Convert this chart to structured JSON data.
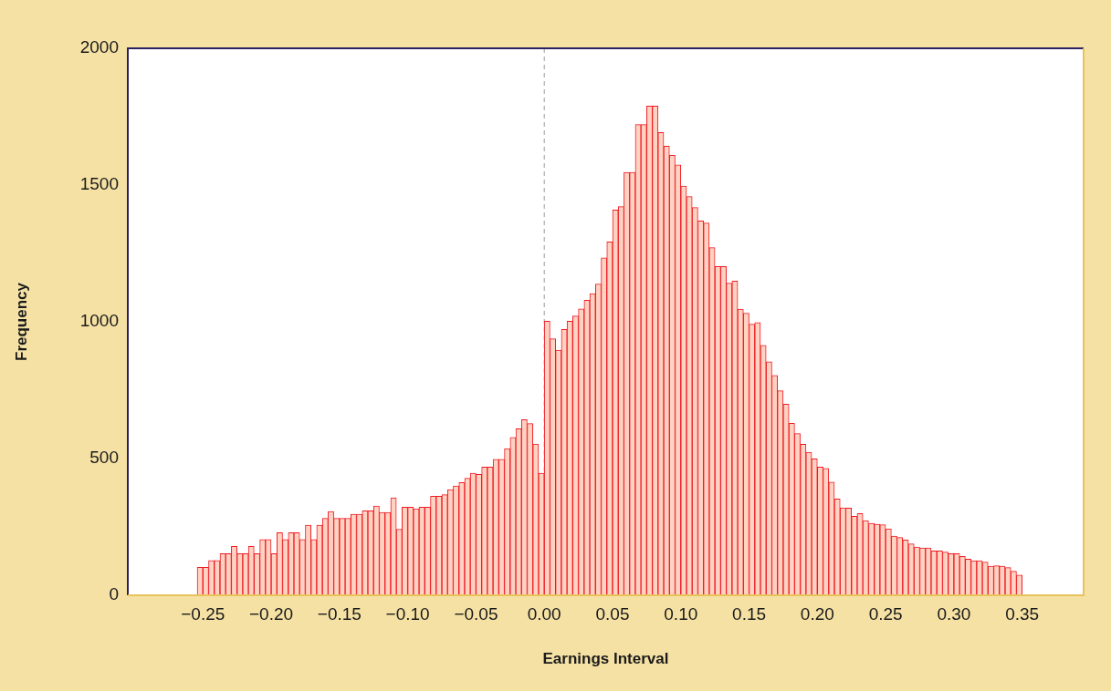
{
  "chart_data": {
    "type": "histogram",
    "xlabel": "Earnings Interval",
    "ylabel": "Frequency",
    "color": "#ffd2c2",
    "bins": [
      -0.2542,
      -0.25,
      -0.2458,
      -0.2417,
      -0.2375,
      -0.2333,
      -0.2292,
      -0.225,
      -0.2208,
      -0.2167,
      -0.2125,
      -0.2083,
      -0.2042,
      -0.2,
      -0.1958,
      -0.1917,
      -0.1875,
      -0.1833,
      -0.1792,
      -0.175,
      -0.1708,
      -0.1667,
      -0.1625,
      -0.1583,
      -0.1542,
      -0.15,
      -0.1458,
      -0.1417,
      -0.1375,
      -0.1333,
      -0.1292,
      -0.125,
      -0.1208,
      -0.1167,
      -0.1125,
      -0.1083,
      -0.1042,
      -0.1,
      -0.0958,
      -0.0917,
      -0.0875,
      -0.0833,
      -0.0792,
      -0.075,
      -0.0708,
      -0.0667,
      -0.0625,
      -0.0583,
      -0.0542,
      -0.05,
      -0.0458,
      -0.0417,
      -0.0375,
      -0.0333,
      -0.0292,
      -0.025,
      -0.0208,
      -0.0167,
      -0.0125,
      -0.0083,
      -0.0042,
      0,
      0.0042,
      0.0083,
      0.0125,
      0.0167,
      0.0208,
      0.025,
      0.0292,
      0.0333,
      0.0375,
      0.0417,
      0.0458,
      0.05,
      0.0542,
      0.0583,
      0.0625,
      0.0667,
      0.0708,
      0.075,
      0.0792,
      0.0833,
      0.0875,
      0.0917,
      0.0958,
      0.1,
      0.1042,
      0.1083,
      0.1125,
      0.1167,
      0.1208,
      0.125,
      0.1292,
      0.1333,
      0.1375,
      0.1417,
      0.1458,
      0.15,
      0.1542,
      0.1583,
      0.1625,
      0.1667,
      0.1708,
      0.175,
      0.1792,
      0.1833,
      0.1875,
      0.1917,
      0.1958,
      0.2,
      0.2042,
      0.2083,
      0.2125,
      0.2167,
      0.2208,
      0.225,
      0.2292,
      0.2333,
      0.2375,
      0.2417,
      0.2458,
      0.25,
      0.2542,
      0.2583,
      0.2625,
      0.2667,
      0.2708,
      0.275,
      0.2792,
      0.2833,
      0.2875,
      0.2917,
      0.2958,
      0.3,
      0.3042,
      0.3083,
      0.3125,
      0.3167,
      0.3208,
      0.325,
      0.3292,
      0.3333,
      0.3375,
      0.3417,
      0.3458,
      0.35
    ],
    "values": [
      102,
      102,
      127,
      127,
      152,
      152,
      179,
      152,
      152,
      179,
      152,
      204,
      204,
      152,
      229,
      204,
      229,
      229,
      204,
      256,
      204,
      256,
      281,
      306,
      281,
      281,
      281,
      296,
      296,
      309,
      309,
      326,
      303,
      303,
      356,
      241,
      322,
      322,
      316,
      322,
      322,
      362,
      362,
      368,
      386,
      400,
      412,
      428,
      446,
      442,
      469,
      469,
      497,
      497,
      536,
      577,
      609,
      642,
      628,
      553,
      446,
      1002,
      938,
      896,
      972,
      1002,
      1021,
      1047,
      1079,
      1103,
      1138,
      1234,
      1292,
      1409,
      1421,
      1546,
      1546,
      1721,
      1721,
      1789,
      1789,
      1692,
      1642,
      1609,
      1574,
      1496,
      1458,
      1418,
      1369,
      1361,
      1271,
      1202,
      1202,
      1141,
      1149,
      1046,
      1031,
      991,
      997,
      914,
      854,
      804,
      748,
      699,
      629,
      591,
      552,
      523,
      499,
      469,
      464,
      414,
      352,
      320,
      319,
      289,
      299,
      273,
      263,
      260,
      258,
      243,
      216,
      211,
      202,
      188,
      176,
      173,
      173,
      162,
      162,
      158,
      152,
      152,
      142,
      132,
      126,
      126,
      121,
      106,
      108,
      106,
      101,
      88,
      74
    ],
    "xlim": [
      -0.305,
      0.395
    ],
    "xticks": [
      {
        "value": -0.25,
        "label": "−0.25"
      },
      {
        "value": -0.2,
        "label": "−0.20"
      },
      {
        "value": -0.15,
        "label": "−0.15"
      },
      {
        "value": -0.1,
        "label": "−0.10"
      },
      {
        "value": -0.05,
        "label": "−0.05"
      },
      {
        "value": 0,
        "label": "0.00"
      },
      {
        "value": 0.05,
        "label": "0.05"
      },
      {
        "value": 0.1,
        "label": "0.10"
      },
      {
        "value": 0.15,
        "label": "0.15"
      },
      {
        "value": 0.2,
        "label": "0.20"
      },
      {
        "value": 0.25,
        "label": "0.25"
      },
      {
        "value": 0.3,
        "label": "0.30"
      },
      {
        "value": 0.35,
        "label": "0.35"
      }
    ],
    "ylim": [
      0,
      2000
    ],
    "yticks": [
      0,
      500,
      1000,
      1500,
      2000
    ],
    "grid": false,
    "legend": false,
    "ref_lines": [
      {
        "axis": "x",
        "value": 0,
        "color": "#999999",
        "line_style": "dashed"
      }
    ]
  }
}
